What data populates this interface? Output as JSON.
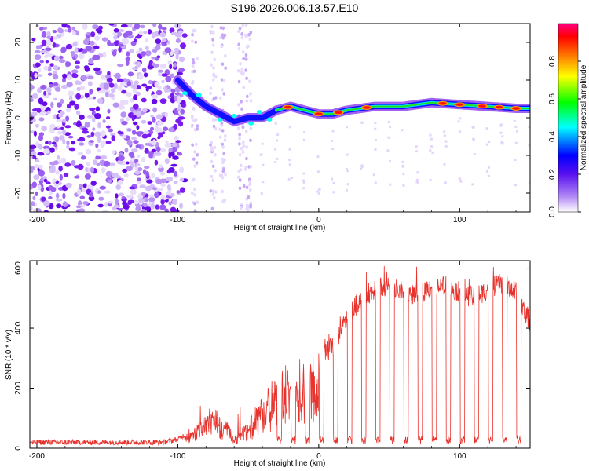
{
  "title": "S196.2026.006.13.57.E10",
  "chart_data": [
    {
      "type": "heatmap",
      "name": "spectrogram",
      "xlabel": "Height of straight line (km)",
      "ylabel": "Frequency (Hz)",
      "xlim": [
        -205,
        150
      ],
      "ylim": [
        -25,
        25
      ],
      "xticks": [
        -200,
        -100,
        0,
        100
      ],
      "yticks": [
        -20,
        -10,
        0,
        10,
        20
      ],
      "colorbar": {
        "label": "Normalized spectral amplitude",
        "range": [
          0,
          1
        ],
        "ticks": [
          "0.0",
          "0.2",
          "0.4",
          "0.6",
          "0.8"
        ],
        "colors": [
          "#ffffff",
          "#7a1cf0",
          "#0000ff",
          "#00ffff",
          "#00ff00",
          "#ffff00",
          "#ff0000",
          "#ff0080"
        ]
      },
      "ridge": {
        "description": "frequency of peak spectral amplitude vs height",
        "x": [
          -100,
          -90,
          -80,
          -70,
          -60,
          -50,
          -40,
          -30,
          -20,
          -10,
          0,
          10,
          20,
          40,
          60,
          80,
          100,
          120,
          140,
          150
        ],
        "y": [
          10,
          6,
          3,
          1,
          -1,
          0,
          0,
          2,
          3,
          2,
          1,
          1,
          2,
          3,
          3,
          4,
          3.5,
          3,
          2.5,
          2.5
        ]
      }
    },
    {
      "type": "line",
      "name": "snr",
      "xlabel": "Height of straight line (km)",
      "ylabel": "SNR (10 * v/v)",
      "xlim": [
        -205,
        150
      ],
      "ylim": [
        0,
        625
      ],
      "xticks": [
        -200,
        -100,
        0,
        100
      ],
      "yticks": [
        0,
        200,
        400,
        600
      ],
      "color": "#e8322c",
      "envelope": {
        "x": [
          -205,
          -110,
          -100,
          -90,
          -80,
          -75,
          -70,
          -65,
          -60,
          -50,
          -40,
          -30,
          -20,
          -10,
          0,
          10,
          20,
          30,
          40,
          50,
          60,
          70,
          80,
          90,
          100,
          110,
          120,
          130,
          140,
          150
        ],
        "y": [
          20,
          20,
          30,
          60,
          120,
          150,
          110,
          90,
          40,
          90,
          180,
          250,
          300,
          320,
          300,
          340,
          430,
          500,
          530,
          540,
          520,
          510,
          540,
          540,
          520,
          500,
          530,
          550,
          520,
          420
        ]
      },
      "dropouts_x": [
        -28,
        -18,
        -8,
        2,
        12,
        22,
        32,
        42,
        52,
        62,
        72,
        82,
        92,
        102,
        112,
        122,
        132,
        142
      ]
    }
  ]
}
